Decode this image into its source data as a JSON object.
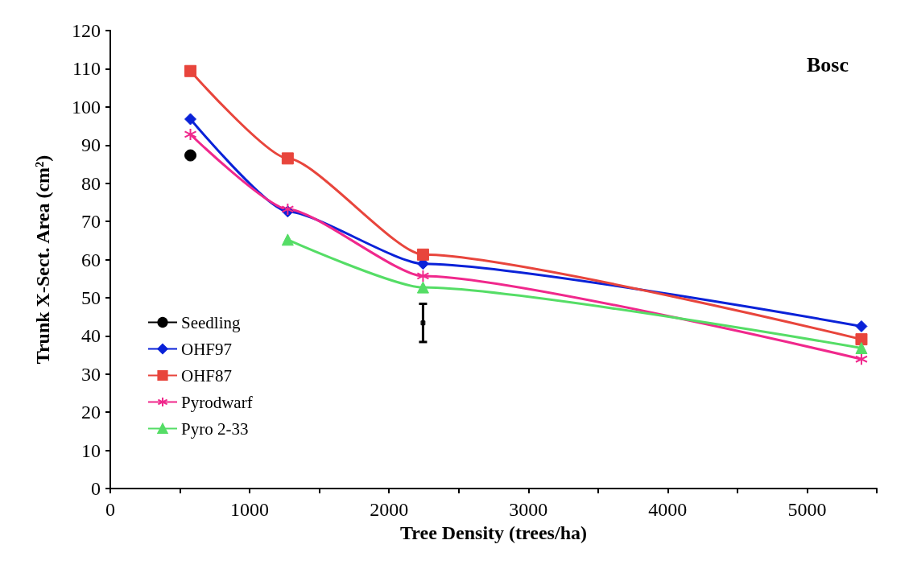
{
  "chart_data": {
    "type": "line",
    "title": "Bosc",
    "xlabel": "Tree Density (trees/ha)",
    "ylabel": "Trunk X-Sect. Area (cm²)",
    "series": [
      {
        "name": "Seedling",
        "color": "#000000",
        "marker": "circle",
        "x": [
          575
        ],
        "values": [
          87.3
        ]
      },
      {
        "name": "OHF97",
        "color": "#0a22d8",
        "marker": "diamond",
        "x": [
          575,
          1273,
          2244,
          5390
        ],
        "values": [
          96.8,
          72.6,
          58.9,
          42.5
        ]
      },
      {
        "name": "OHF87",
        "color": "#e8453c",
        "marker": "square",
        "x": [
          575,
          1273,
          2244,
          5390
        ],
        "values": [
          109.4,
          86.5,
          61.3,
          39.1
        ]
      },
      {
        "name": "Pyrodwarf",
        "color": "#f0288c",
        "marker": "star",
        "x": [
          575,
          1273,
          2244,
          5390
        ],
        "values": [
          92.8,
          73.2,
          55.7,
          33.9
        ]
      },
      {
        "name": "Pyro 2-33",
        "color": "#55dd66",
        "marker": "triangle",
        "x": [
          1273,
          2244,
          5390
        ],
        "values": [
          65.2,
          52.7,
          36.8
        ]
      },
      {
        "type": "scatter",
        "color": "#000000",
        "marker": "square",
        "x": [
          2244
        ],
        "values": [
          43.4
        ],
        "errors": [
          5
        ]
      }
    ],
    "xlim": [
      0,
      5500
    ],
    "xticks": [
      0,
      {
        "value": 500,
        "label": null
      },
      1000,
      {
        "value": 1500,
        "label": null
      },
      2000,
      {
        "value": 2500,
        "label": null
      },
      3000,
      {
        "value": 3500,
        "label": null
      },
      4000,
      {
        "value": 4500,
        "label": null
      },
      5000,
      {
        "value": 5500,
        "label": null
      }
    ],
    "ylim": [
      0,
      120
    ],
    "yticks": [
      0,
      10,
      20,
      30,
      40,
      50,
      60,
      70,
      80,
      90,
      100,
      110,
      120
    ],
    "grid": false,
    "legend": "bottom left"
  }
}
